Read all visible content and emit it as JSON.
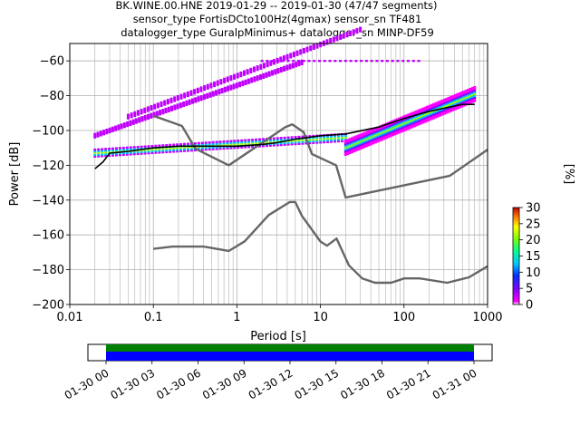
{
  "title_lines": [
    "BK.WINE.00.HNE   2019-01-29 -- 2019-01-30  (47/47 segments)",
    "sensor_type FortisDCto100Hz(4gmax) sensor_sn TF481",
    "datalogger_type GuralpMinimus+ datalogger_sn MINP-DF59"
  ],
  "chart_data": [
    {
      "type": "heatmap",
      "xlabel": "Period [s]",
      "ylabel": "Power [dB]",
      "xscale": "log",
      "xlim": [
        0.01,
        1000
      ],
      "ylim": [
        -200,
        -50
      ],
      "x_ticks": [
        0.01,
        0.1,
        1,
        10,
        100,
        1000
      ],
      "x_tick_labels": [
        "0.01",
        "0.1",
        "1",
        "10",
        "100",
        "1000"
      ],
      "y_ticks": [
        -200,
        -180,
        -160,
        -140,
        -120,
        -100,
        -80,
        -60
      ],
      "y_tick_labels": [
        "−200",
        "−180",
        "−160",
        "−140",
        "−120",
        "−100",
        "−80",
        "−60"
      ],
      "grid": true,
      "series": [
        {
          "name": "",
          "role": "high noise model",
          "color": "#666666",
          "x": [
            0.1,
            0.22,
            0.32,
            0.8,
            3.8,
            4.6,
            6.3,
            7.9,
            15.4,
            20,
            354.8,
            1000
          ],
          "y": [
            -91.5,
            -97.4,
            -110.5,
            -120,
            -98,
            -96.5,
            -101,
            -113.5,
            -120,
            -138.5,
            -126,
            -111
          ]
        },
        {
          "name": "",
          "role": "low noise model",
          "color": "#666666",
          "x": [
            0.1,
            0.17,
            0.4,
            0.8,
            1.24,
            2.4,
            4.3,
            5,
            6,
            10,
            12,
            15.6,
            21.9,
            31.6,
            45,
            70,
            101,
            154,
            328,
            600,
            1000
          ],
          "y": [
            -168,
            -166.7,
            -166.7,
            -169.2,
            -163.7,
            -148.6,
            -141.1,
            -141.1,
            -149,
            -163.8,
            -166.2,
            -162.1,
            -177.5,
            -185,
            -187.5,
            -187.5,
            -185,
            -185,
            -187.5,
            -184.4,
            -178
          ]
        },
        {
          "name": "",
          "role": "mode",
          "color": "#000000",
          "x": [
            0.02,
            0.025,
            0.03,
            0.05,
            0.1,
            0.2,
            0.5,
            1,
            2,
            3,
            5,
            10,
            20,
            50,
            100,
            200,
            500,
            700
          ],
          "y": [
            -122,
            -118,
            -113,
            -112,
            -110,
            -109,
            -109,
            -109,
            -108,
            -107,
            -105,
            -103,
            -102,
            -98,
            -93,
            -89,
            -85,
            -85
          ]
        }
      ],
      "colorbar": {
        "label": "[%]",
        "range": [
          0,
          30
        ],
        "ticks": [
          0,
          5,
          10,
          15,
          20,
          25,
          30
        ],
        "tick_labels": [
          "0",
          "5",
          "10",
          "15",
          "20",
          "25",
          "30"
        ]
      }
    },
    {
      "type": "bar",
      "role": "data coverage",
      "x_tick_labels": [
        "01-30 00",
        "01-30 03",
        "01-30 06",
        "01-30 09",
        "01-30 12",
        "01-30 15",
        "01-30 18",
        "01-30 21",
        "01-31 00"
      ],
      "colors": {
        "top": "#008000",
        "bottom": "#0000ff"
      }
    }
  ]
}
